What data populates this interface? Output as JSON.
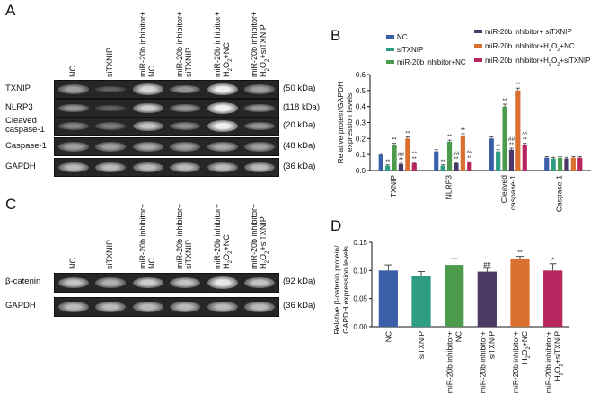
{
  "panels": {
    "A": "A",
    "B": "B",
    "C": "C",
    "D": "D"
  },
  "blotA": {
    "lanes": [
      "NC",
      "siTXNIP",
      "miR-20b inhibitor+\nNC",
      "miR-20b inhibitor+\nsiTXNIP",
      "miR-20b inhibitor+\nH2O2+NC",
      "miR-20b inhibitor+\nH2O2+siTXNIP"
    ],
    "rows": [
      {
        "label": "TXNIP",
        "kda": "(50 kDa)",
        "intensity": [
          0.55,
          0.2,
          0.85,
          0.5,
          1.0,
          0.55
        ]
      },
      {
        "label": "NLRP3",
        "kda": "(118 kDa)",
        "intensity": [
          0.5,
          0.2,
          0.8,
          0.5,
          1.0,
          0.5
        ]
      },
      {
        "label": "Cleaved\ncaspase-1",
        "kda": "(20 kDa)",
        "intensity": [
          0.4,
          0.35,
          0.75,
          0.45,
          1.0,
          0.5
        ]
      },
      {
        "label": "Caspase-1",
        "kda": "(48 kDa)",
        "intensity": [
          0.55,
          0.55,
          0.6,
          0.55,
          0.6,
          0.55
        ]
      },
      {
        "label": "GAPDH",
        "kda": "(36 kDa)",
        "intensity": [
          0.7,
          0.7,
          0.7,
          0.7,
          0.7,
          0.7
        ]
      }
    ]
  },
  "blotC": {
    "lanes": [
      "NC",
      "siTXNIP",
      "miR-20b inhibitor+\nNC",
      "miR-20b inhibitor+\nsiTXNIP",
      "miR-20b inhibitor+\nH2O2+NC",
      "miR-20b inhibitor+\nH2O2+siTXNIP"
    ],
    "rows": [
      {
        "label": "β-catenin",
        "kda": "(92 kDa)",
        "intensity": [
          0.75,
          0.65,
          0.8,
          0.75,
          0.95,
          0.75
        ]
      },
      {
        "label": "GAPDH",
        "kda": "(36 kDa)",
        "intensity": [
          0.7,
          0.7,
          0.7,
          0.7,
          0.7,
          0.7
        ]
      }
    ]
  },
  "chart_data": [
    {
      "type": "bar",
      "ylabel": "Relative protein/GAPDH\nexpression levels",
      "ylim": [
        0,
        0.6
      ],
      "yticks": [
        "0.0",
        "0.1",
        "0.2",
        "0.3",
        "0.4",
        "0.5",
        "0.6"
      ],
      "categories": [
        "TXNIP",
        "NLRP3",
        "Cleaved\ncaspase-1",
        "Caspase-1"
      ],
      "legend": [
        "NC",
        "siTXNIP",
        "miR-20b inhibitor+NC",
        "miR-20b inhibitor+ siTXNIP",
        "miR-20b inhibitor+H2O2+NC",
        "miR-20b inhibitor+H2O2+siTXNIP"
      ],
      "colors": [
        "#3b5ea8",
        "#2e9b83",
        "#4c9a4c",
        "#4b3a66",
        "#d97030",
        "#b8265f"
      ],
      "series": [
        {
          "name": "NC",
          "values": [
            0.1,
            0.12,
            0.2,
            0.08
          ],
          "err": [
            0.01,
            0.01,
            0.01,
            0.008
          ]
        },
        {
          "name": "siTXNIP",
          "values": [
            0.03,
            0.03,
            0.12,
            0.075
          ],
          "err": [
            0.005,
            0.005,
            0.01,
            0.008
          ],
          "marks": [
            "**",
            "**",
            "**",
            ""
          ]
        },
        {
          "name": "miR-20b inhibitor+NC",
          "values": [
            0.16,
            0.18,
            0.4,
            0.08
          ],
          "err": [
            0.01,
            0.01,
            0.015,
            0.008
          ],
          "marks": [
            "**",
            "**",
            "**",
            ""
          ]
        },
        {
          "name": "miR-20b inhibitor+ siTXNIP",
          "values": [
            0.04,
            0.045,
            0.13,
            0.075
          ],
          "err": [
            0.005,
            0.005,
            0.01,
            0.008
          ],
          "marks": [
            "##\n**",
            "##\n**",
            "##\n**",
            ""
          ]
        },
        {
          "name": "miR-20b inhibitor+H2O2+NC",
          "values": [
            0.2,
            0.22,
            0.5,
            0.08
          ],
          "err": [
            0.01,
            0.01,
            0.015,
            0.008
          ],
          "marks": [
            "**",
            "**",
            "**",
            ""
          ]
        },
        {
          "name": "miR-20b inhibitor+H2O2+siTXNIP",
          "values": [
            0.045,
            0.05,
            0.16,
            0.08
          ],
          "err": [
            0.005,
            0.005,
            0.01,
            0.008
          ],
          "marks": [
            "^^\n**",
            "^^\n**",
            "^^\n**",
            ""
          ]
        }
      ]
    },
    {
      "type": "bar",
      "ylabel": "Relative β-catenin protein/\nGAPDH expression levels",
      "ylim": [
        0,
        0.15
      ],
      "yticks": [
        "0.00",
        "0.05",
        "0.10",
        "0.15"
      ],
      "categories": [
        "NC",
        "siTXNIP",
        "miR-20b inhibitor+\nNC",
        "miR-20b inhibitor+\nsiTXNIP",
        "miR-20b inhibitor+\nH2O2+NC",
        "miR-20b inhibitor+\nH2O2+siTXNIP"
      ],
      "colors": [
        "#3b5ea8",
        "#2e9b83",
        "#4c9a4c",
        "#4b3a66",
        "#d97030",
        "#b8265f"
      ],
      "values": [
        0.1,
        0.09,
        0.11,
        0.098,
        0.12,
        0.1
      ],
      "err": [
        0.01,
        0.008,
        0.011,
        0.006,
        0.005,
        0.012
      ],
      "marks": [
        "",
        "",
        "",
        "##",
        "**",
        "^"
      ]
    }
  ]
}
